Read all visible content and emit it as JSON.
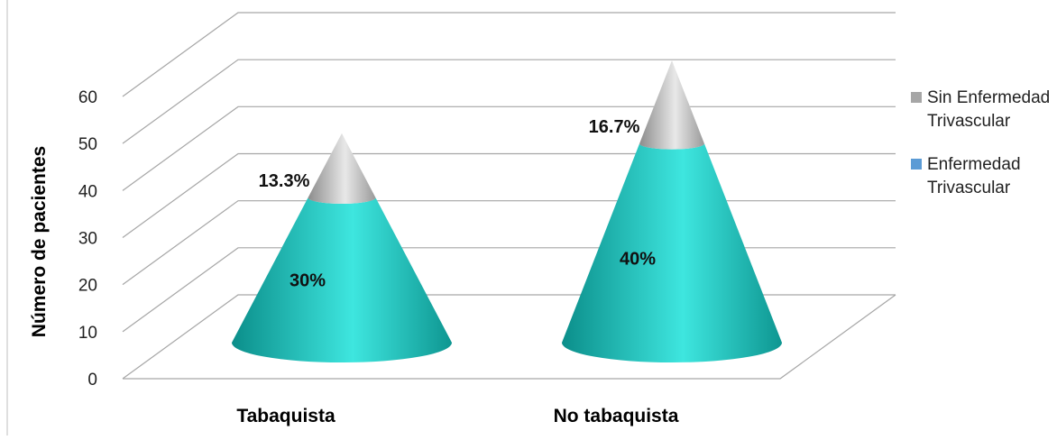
{
  "chart_data": {
    "type": "bar",
    "title": "",
    "ylabel": "Número de pacientes",
    "xlabel": "",
    "ylim": [
      0,
      60
    ],
    "yticks": [
      0,
      10,
      20,
      30,
      40,
      50,
      60
    ],
    "grid": true,
    "legend_position": "right",
    "categories": [
      "Tabaquista",
      "No tabaquista"
    ],
    "series": [
      {
        "name": "Enfermedad Trivascular",
        "values": [
          30,
          40
        ],
        "labels": [
          "30%",
          "40%"
        ],
        "color": "#1fb5b0"
      },
      {
        "name": "Sin Enfermedad Trivascular",
        "values": [
          13.3,
          16.7
        ],
        "labels": [
          "13.3%",
          "16.7%"
        ],
        "color": "#a6a6a6"
      }
    ],
    "legend": [
      {
        "label": "Sin Enfermedad Trivascular",
        "color": "#a6a6a6"
      },
      {
        "label": "Enfermedad Trivascular",
        "color": "#5b9bd5"
      }
    ]
  }
}
